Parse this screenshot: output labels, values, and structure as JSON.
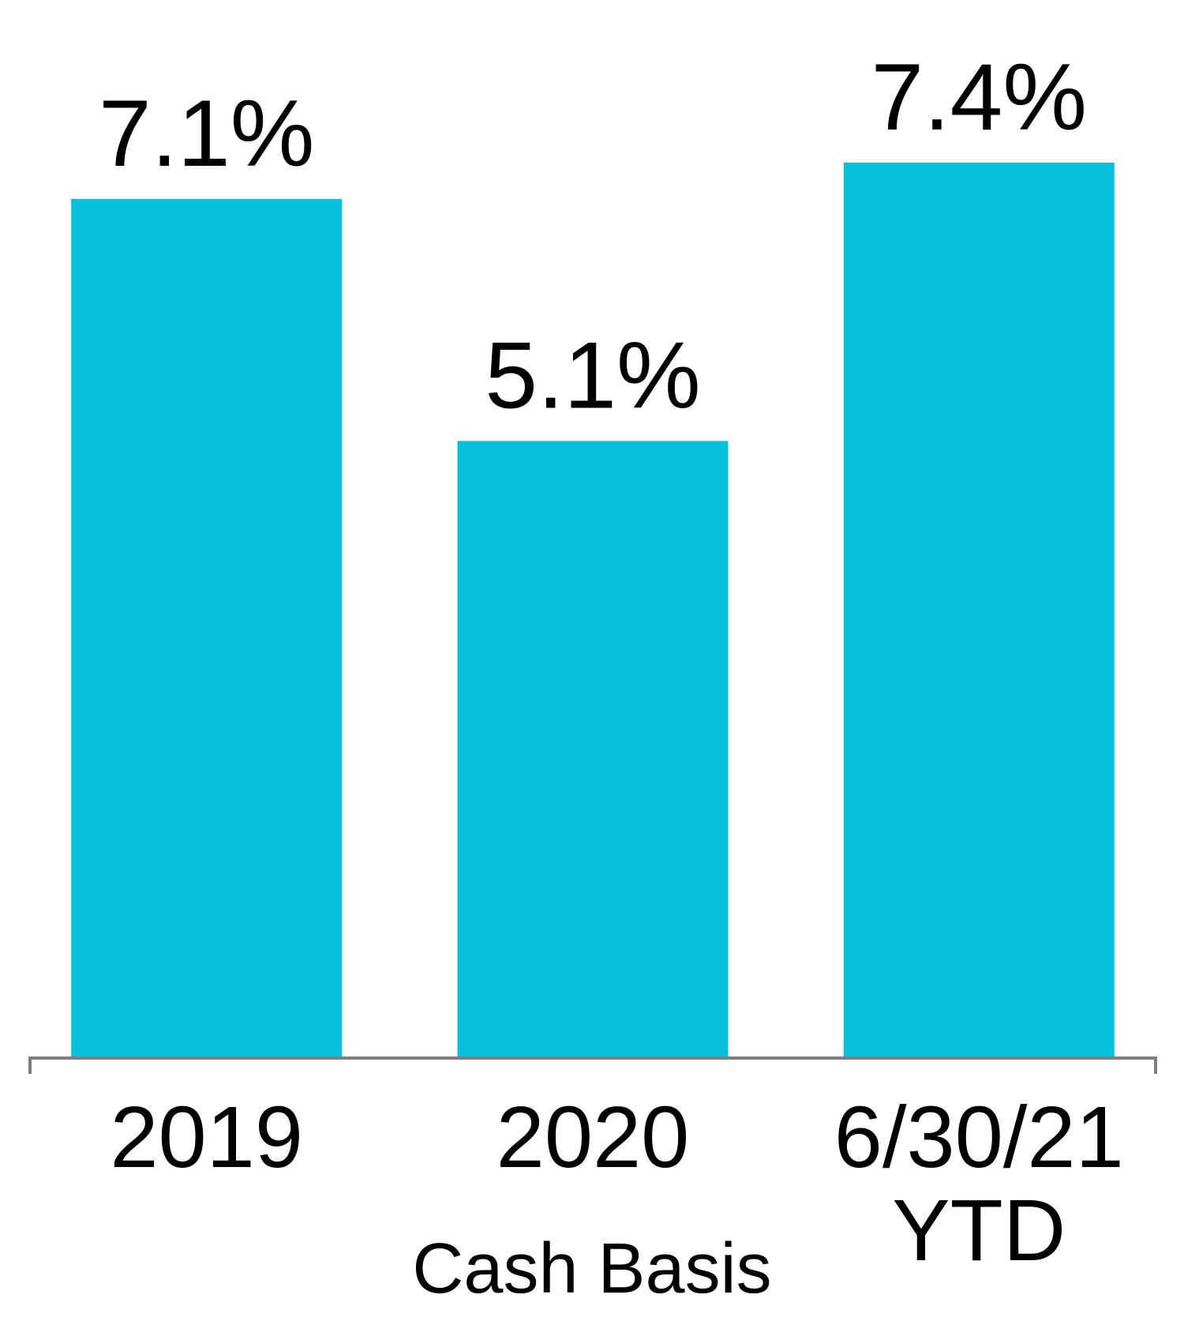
{
  "chart_data": {
    "type": "bar",
    "categories": [
      "2019",
      "2020",
      "6/30/21 YTD"
    ],
    "category_lines": [
      [
        "2019"
      ],
      [
        "2020"
      ],
      [
        "6/30/21",
        "YTD"
      ]
    ],
    "values": [
      7.1,
      5.1,
      7.4
    ],
    "data_labels": [
      "7.1%",
      "5.1%",
      "7.4%"
    ],
    "xlabel": "Cash Basis",
    "ylabel": "",
    "ylim": [
      0,
      7.4
    ],
    "grid": false,
    "legend": "none",
    "colors": {
      "bar": "#06C0DC",
      "axis": "#7F7F7F",
      "text": "#000000"
    }
  }
}
